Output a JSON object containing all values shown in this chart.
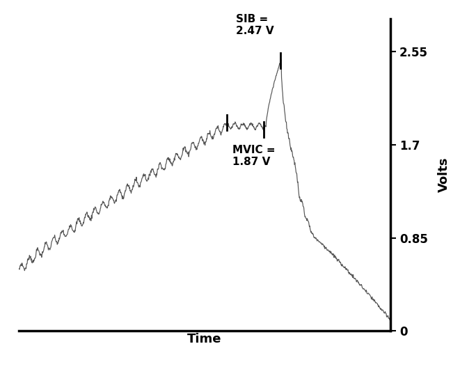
{
  "title": "",
  "xlabel": "Time",
  "ylabel": "Volts",
  "yticks": [
    0,
    0.85,
    1.7,
    2.55
  ],
  "ylim": [
    0,
    2.85
  ],
  "xlim": [
    0,
    1000
  ],
  "bg_color": "#ffffff",
  "line_color": "#555555",
  "annotation_color": "#000000",
  "mvic_value": 1.87,
  "sib_value": 2.47,
  "mvic_label": "MVIC =\n1.87 V",
  "sib_label": "SIB =\n2.47 V",
  "mvic_marker_x1": 560,
  "mvic_marker_x2": 660,
  "sib_marker_x": 705,
  "figsize": [
    6.84,
    5.4
  ],
  "dpi": 100
}
